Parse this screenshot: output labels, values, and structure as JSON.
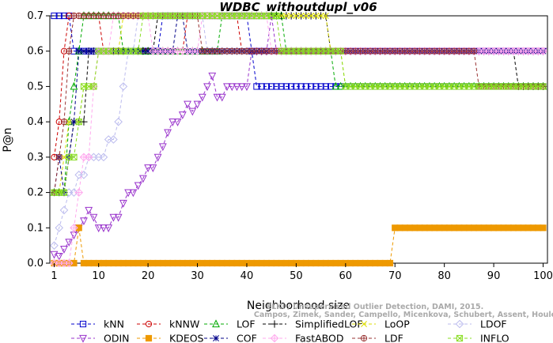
{
  "chart_data": {
    "type": "line",
    "title": "WDBC_withoutdupl_v06",
    "xlabel": "Neighborhood size",
    "ylabel": "P@n",
    "xlim": [
      1,
      100
    ],
    "ylim": [
      0,
      0.7
    ],
    "xticks": [
      "1",
      "10",
      "20",
      "30",
      "40",
      "50",
      "60",
      "70",
      "80",
      "90",
      "100"
    ],
    "yticks": [
      "0.0",
      "0.1",
      "0.2",
      "0.3",
      "0.4",
      "0.5",
      "0.6",
      "0.7"
    ],
    "grid": false,
    "legend_position": "bottom",
    "watermark_line1": "ELKI / Unsupervised Outlier Detection, DAMI, 2015.",
    "watermark_line2": "Campos, Zimek, Sander, Campello, Micenkova, Schubert, Assent, Houle",
    "series": [
      {
        "name": "kNN",
        "color": "#0000cc",
        "marker": "square",
        "points": [
          [
            1,
            0.7
          ],
          [
            5,
            0.6
          ],
          [
            22,
            0.6
          ],
          [
            23,
            0.7
          ],
          [
            40,
            0.7
          ],
          [
            41,
            0.6
          ],
          [
            42,
            0.5
          ],
          [
            100,
            0.5
          ]
        ]
      },
      {
        "name": "kNNW",
        "color": "#cc0000",
        "marker": "circle",
        "points": [
          [
            1,
            0.3
          ],
          [
            2,
            0.4
          ],
          [
            3,
            0.6
          ],
          [
            4,
            0.7
          ],
          [
            10,
            0.7
          ],
          [
            11,
            0.6
          ],
          [
            27,
            0.6
          ],
          [
            28,
            0.7
          ],
          [
            38,
            0.7
          ],
          [
            39,
            0.6
          ],
          [
            100,
            0.6
          ]
        ]
      },
      {
        "name": "LOF",
        "color": "#00aa00",
        "marker": "triangle-up",
        "points": [
          [
            1,
            0.2
          ],
          [
            3,
            0.2
          ],
          [
            4,
            0.4
          ],
          [
            5,
            0.5
          ],
          [
            6,
            0.6
          ],
          [
            7,
            0.7
          ],
          [
            14,
            0.7
          ],
          [
            15,
            0.6
          ],
          [
            34,
            0.6
          ],
          [
            35,
            0.7
          ],
          [
            47,
            0.7
          ],
          [
            48,
            0.6
          ],
          [
            57,
            0.6
          ],
          [
            58,
            0.5
          ],
          [
            100,
            0.5
          ]
        ]
      },
      {
        "name": "SimplifiedLOF",
        "color": "#000000",
        "marker": "plus",
        "points": [
          [
            1,
            0.2
          ],
          [
            3,
            0.2
          ],
          [
            4,
            0.3
          ],
          [
            5,
            0.4
          ],
          [
            7,
            0.4
          ],
          [
            8,
            0.6
          ],
          [
            21,
            0.6
          ],
          [
            22,
            0.7
          ],
          [
            56,
            0.7
          ],
          [
            57,
            0.6
          ],
          [
            94,
            0.6
          ],
          [
            95,
            0.5
          ],
          [
            100,
            0.5
          ]
        ]
      },
      {
        "name": "LoOP",
        "color": "#dddd00",
        "marker": "x",
        "points": [
          [
            1,
            0.2
          ],
          [
            2,
            0.2
          ],
          [
            3,
            0.3
          ],
          [
            4,
            0.4
          ],
          [
            6,
            0.4
          ],
          [
            7,
            0.5
          ],
          [
            9,
            0.5
          ],
          [
            10,
            0.6
          ],
          [
            14,
            0.6
          ],
          [
            15,
            0.7
          ],
          [
            56,
            0.7
          ],
          [
            57,
            0.6
          ],
          [
            59,
            0.6
          ],
          [
            60,
            0.5
          ],
          [
            100,
            0.5
          ]
        ]
      },
      {
        "name": "LDOF",
        "color": "#bbbbee",
        "marker": "diamond",
        "points": [
          [
            1,
            0.05
          ],
          [
            2,
            0.1
          ],
          [
            3,
            0.15
          ],
          [
            4,
            0.2
          ],
          [
            6,
            0.25
          ],
          [
            8,
            0.3
          ],
          [
            11,
            0.3
          ],
          [
            12,
            0.35
          ],
          [
            14,
            0.4
          ],
          [
            15,
            0.5
          ],
          [
            16,
            0.6
          ],
          [
            18,
            0.7
          ],
          [
            31,
            0.7
          ],
          [
            32,
            0.6
          ],
          [
            100,
            0.6
          ]
        ]
      },
      {
        "name": "ODIN",
        "color": "#9933cc",
        "marker": "triangle-down",
        "points": [
          [
            1,
            0.025
          ],
          [
            2,
            0.02
          ],
          [
            3,
            0.04
          ],
          [
            4,
            0.06
          ],
          [
            5,
            0.08
          ],
          [
            6,
            0.1
          ],
          [
            7,
            0.12
          ],
          [
            8,
            0.15
          ],
          [
            9,
            0.13
          ],
          [
            10,
            0.1
          ],
          [
            12,
            0.1
          ],
          [
            13,
            0.13
          ],
          [
            14,
            0.13
          ],
          [
            15,
            0.17
          ],
          [
            16,
            0.2
          ],
          [
            17,
            0.2
          ],
          [
            18,
            0.22
          ],
          [
            19,
            0.24
          ],
          [
            20,
            0.27
          ],
          [
            21,
            0.27
          ],
          [
            22,
            0.3
          ],
          [
            23,
            0.33
          ],
          [
            24,
            0.37
          ],
          [
            25,
            0.4
          ],
          [
            26,
            0.4
          ],
          [
            27,
            0.42
          ],
          [
            28,
            0.45
          ],
          [
            29,
            0.43
          ],
          [
            30,
            0.45
          ],
          [
            31,
            0.47
          ],
          [
            32,
            0.5
          ],
          [
            33,
            0.53
          ],
          [
            34,
            0.47
          ],
          [
            35,
            0.47
          ],
          [
            36,
            0.5
          ],
          [
            40,
            0.5
          ],
          [
            41,
            0.6
          ],
          [
            44,
            0.6
          ],
          [
            45,
            0.7
          ],
          [
            46,
            0.6
          ],
          [
            100,
            0.6
          ]
        ]
      },
      {
        "name": "KDEOS",
        "color": "#ee9900",
        "marker": "square-filled",
        "points": [
          [
            1,
            0
          ],
          [
            5,
            0
          ],
          [
            6,
            0.1
          ],
          [
            7,
            0
          ],
          [
            69,
            0
          ],
          [
            70,
            0.1
          ],
          [
            100,
            0.1
          ]
        ]
      },
      {
        "name": "COF",
        "color": "#000088",
        "marker": "asterisk",
        "points": [
          [
            1,
            0.2
          ],
          [
            2,
            0.3
          ],
          [
            3,
            0.2
          ],
          [
            4,
            0.3
          ],
          [
            5,
            0.4
          ],
          [
            6,
            0.6
          ],
          [
            25,
            0.6
          ],
          [
            26,
            0.7
          ],
          [
            28,
            0.6
          ],
          [
            100,
            0.6
          ]
        ]
      },
      {
        "name": "FastABOD",
        "color": "#ffaaee",
        "marker": "diamond-plus",
        "points": [
          [
            1,
            0
          ],
          [
            4,
            0
          ],
          [
            5,
            0.1
          ],
          [
            6,
            0.2
          ],
          [
            7,
            0.3
          ],
          [
            8,
            0.3
          ],
          [
            9,
            0.5
          ],
          [
            10,
            0.6
          ],
          [
            12,
            0.6
          ],
          [
            13,
            0.7
          ],
          [
            20,
            0.7
          ],
          [
            21,
            0.6
          ],
          [
            30,
            0.6
          ],
          [
            31,
            0.7
          ],
          [
            44,
            0.7
          ],
          [
            45,
            0.6
          ],
          [
            100,
            0.6
          ]
        ]
      },
      {
        "name": "LDF",
        "color": "#993333",
        "marker": "circle-plus",
        "points": [
          [
            1,
            0.2
          ],
          [
            2,
            0.3
          ],
          [
            3,
            0.4
          ],
          [
            4,
            0.6
          ],
          [
            5,
            0.7
          ],
          [
            30,
            0.7
          ],
          [
            31,
            0.6
          ],
          [
            86,
            0.6
          ],
          [
            87,
            0.5
          ],
          [
            100,
            0.5
          ]
        ]
      },
      {
        "name": "INFLO",
        "color": "#88dd22",
        "marker": "square-x",
        "points": [
          [
            1,
            0.2
          ],
          [
            3,
            0.2
          ],
          [
            4,
            0.3
          ],
          [
            5,
            0.3
          ],
          [
            6,
            0.4
          ],
          [
            7,
            0.5
          ],
          [
            9,
            0.5
          ],
          [
            10,
            0.6
          ],
          [
            18,
            0.6
          ],
          [
            19,
            0.7
          ],
          [
            46,
            0.7
          ],
          [
            47,
            0.6
          ],
          [
            59,
            0.6
          ],
          [
            60,
            0.5
          ],
          [
            100,
            0.5
          ]
        ]
      }
    ]
  }
}
